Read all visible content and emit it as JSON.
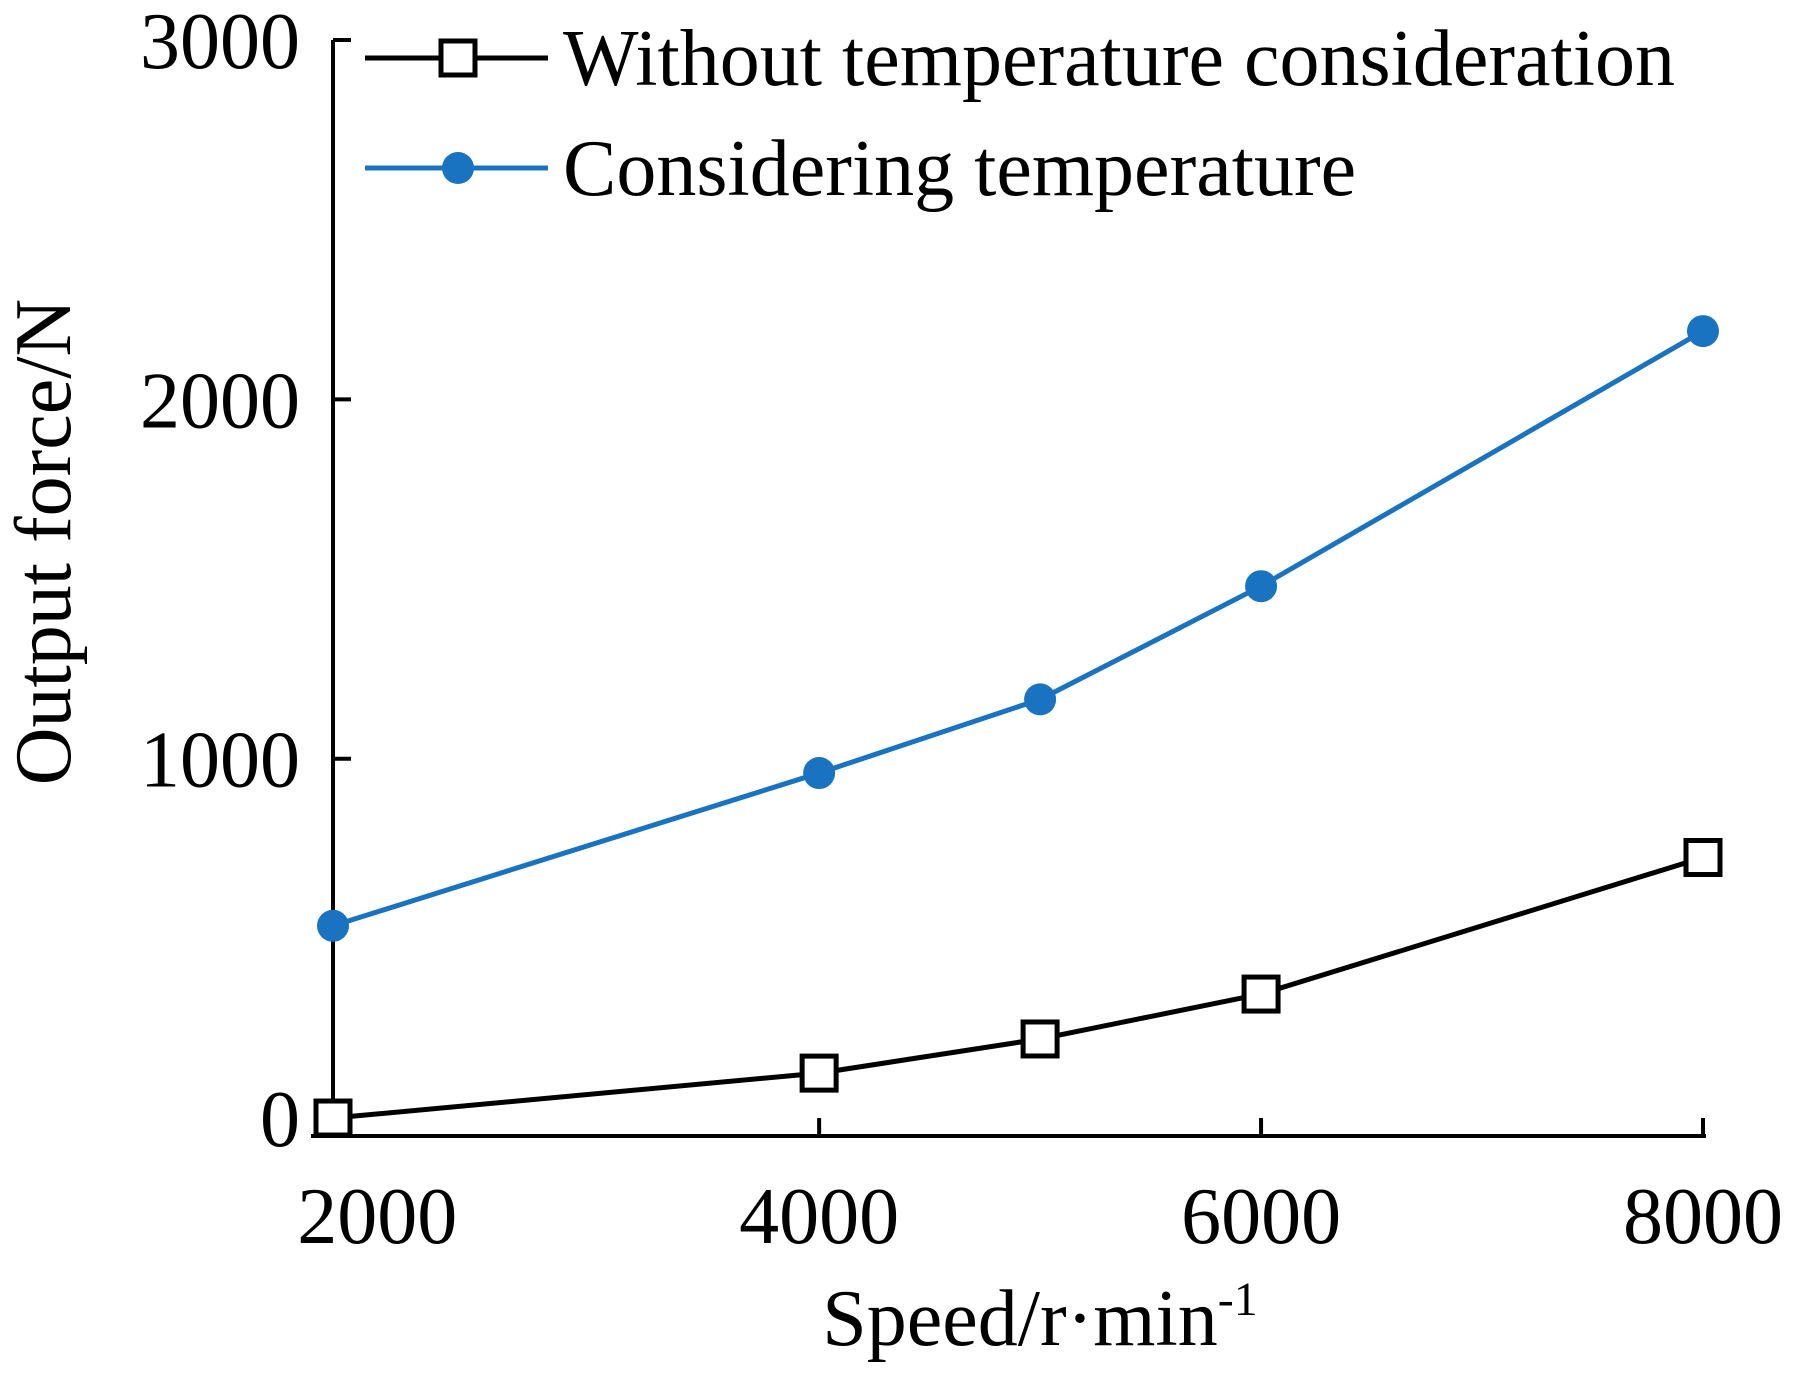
{
  "chart_data": {
    "type": "line",
    "title": "",
    "xlabel": "Speed/r·min",
    "xlabel_superscript": "-1",
    "ylabel": "Output force/N",
    "x": [
      1800,
      4000,
      5000,
      6000,
      8000
    ],
    "xlim": [
      1800,
      8000
    ],
    "ylim": [
      -50,
      3000
    ],
    "xticks": [
      2000,
      4000,
      6000,
      8000
    ],
    "xtick_labels": [
      "2000",
      "4000",
      "6000",
      "8000"
    ],
    "yticks": [
      0,
      1000,
      2000,
      3000
    ],
    "ytick_labels": [
      "0",
      "1000",
      "2000",
      "3000"
    ],
    "grid": false,
    "legend_position": "top",
    "series": [
      {
        "name": "Without temperature consideration",
        "color": "#000000",
        "marker": "open-square",
        "values": [
          0,
          125,
          220,
          345,
          725
        ]
      },
      {
        "name": "Considering temperature",
        "color": "#1a73c0",
        "marker": "filled-circle",
        "values": [
          535,
          960,
          1165,
          1480,
          2190
        ]
      }
    ]
  }
}
